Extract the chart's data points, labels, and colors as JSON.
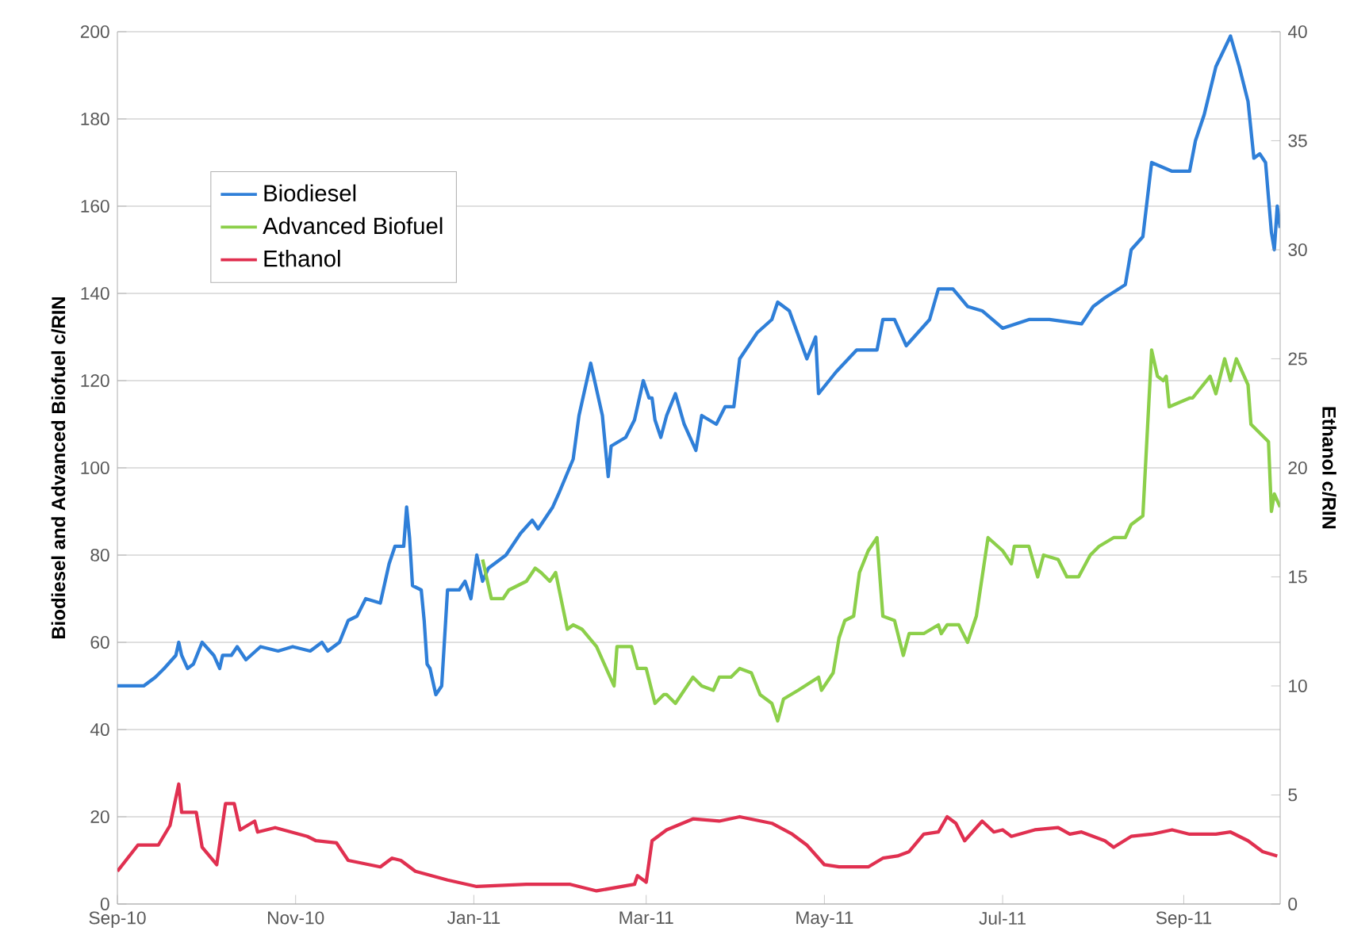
{
  "chart_data": {
    "type": "line",
    "ylabel": "Biodiesel and Advanced Biofuel c/RIN",
    "y2label": "Ethanol c/RIN",
    "xlim": [
      "2010-09-01",
      "2011-10-04"
    ],
    "xticks": [
      {
        "value": "2010-09-01",
        "label": "Sep-10"
      },
      {
        "value": "2010-11-01",
        "label": "Nov-10"
      },
      {
        "value": "2011-01-01",
        "label": "Jan-11"
      },
      {
        "value": "2011-03-01",
        "label": "Mar-11"
      },
      {
        "value": "2011-05-01",
        "label": "May-11"
      },
      {
        "value": "2011-07-01",
        "label": "Jul-11"
      },
      {
        "value": "2011-09-01",
        "label": "Sep-11"
      }
    ],
    "ylim": [
      0,
      200
    ],
    "yticks": [
      0,
      20,
      40,
      60,
      80,
      100,
      120,
      140,
      160,
      180,
      200
    ],
    "y2lim": [
      0,
      40
    ],
    "y2ticks": [
      0,
      5,
      10,
      15,
      20,
      25,
      30,
      35,
      40
    ],
    "grid": "y",
    "legend": "top left",
    "marker": "none",
    "line_style": "solid",
    "series": [
      {
        "name": "Biodiesel",
        "color": "#2f7fd8",
        "x": [
          "2010-09-01",
          "2010-09-10",
          "2010-09-14",
          "2010-09-17",
          "2010-09-21",
          "2010-09-22",
          "2010-09-23",
          "2010-09-25",
          "2010-09-27",
          "2010-09-30",
          "2010-10-04",
          "2010-10-06",
          "2010-10-07",
          "2010-10-10",
          "2010-10-12",
          "2010-10-15",
          "2010-10-20",
          "2010-10-26",
          "2010-10-31",
          "2010-11-06",
          "2010-11-10",
          "2010-11-12",
          "2010-11-16",
          "2010-11-19",
          "2010-11-22",
          "2010-11-25",
          "2010-11-30",
          "2010-12-03",
          "2010-12-05",
          "2010-12-08",
          "2010-12-09",
          "2010-12-10",
          "2010-12-11",
          "2010-12-14",
          "2010-12-15",
          "2010-12-16",
          "2010-12-17",
          "2010-12-19",
          "2010-12-21",
          "2010-12-23",
          "2010-12-27",
          "2010-12-29",
          "2010-12-31",
          "2011-01-02",
          "2011-01-04",
          "2011-01-06",
          "2011-01-10",
          "2011-01-12",
          "2011-01-17",
          "2011-01-21",
          "2011-01-23",
          "2011-01-28",
          "2011-01-30",
          "2011-02-04",
          "2011-02-06",
          "2011-02-10",
          "2011-02-14",
          "2011-02-16",
          "2011-02-17",
          "2011-02-22",
          "2011-02-25",
          "2011-02-28",
          "2011-03-02",
          "2011-03-03",
          "2011-03-04",
          "2011-03-06",
          "2011-03-08",
          "2011-03-11",
          "2011-03-14",
          "2011-03-18",
          "2011-03-20",
          "2011-03-25",
          "2011-03-28",
          "2011-03-31",
          "2011-04-02",
          "2011-04-08",
          "2011-04-13",
          "2011-04-15",
          "2011-04-19",
          "2011-04-25",
          "2011-04-28",
          "2011-04-29",
          "2011-05-05",
          "2011-05-12",
          "2011-05-19",
          "2011-05-21",
          "2011-05-25",
          "2011-05-29",
          "2011-06-06",
          "2011-06-09",
          "2011-06-14",
          "2011-06-19",
          "2011-06-24",
          "2011-07-01",
          "2011-07-10",
          "2011-07-17",
          "2011-07-28",
          "2011-08-01",
          "2011-08-05",
          "2011-08-12",
          "2011-08-14",
          "2011-08-18",
          "2011-08-21",
          "2011-08-28",
          "2011-09-03",
          "2011-09-05",
          "2011-09-08",
          "2011-09-12",
          "2011-09-17",
          "2011-09-20",
          "2011-09-23",
          "2011-09-25",
          "2011-09-27",
          "2011-09-29",
          "2011-10-01",
          "2011-10-02",
          "2011-10-03",
          "2011-10-04"
        ],
        "values": [
          50,
          50,
          52,
          54,
          57,
          60,
          57,
          54,
          55,
          60,
          57,
          54,
          57,
          57,
          59,
          56,
          59,
          58,
          59,
          58,
          60,
          58,
          60,
          65,
          66,
          70,
          69,
          78,
          82,
          82,
          91,
          84,
          73,
          72,
          65,
          55,
          54,
          48,
          50,
          72,
          72,
          74,
          70,
          80,
          74,
          77,
          79,
          80,
          85,
          88,
          86,
          91,
          94,
          102,
          112,
          124,
          112,
          98,
          105,
          107,
          111,
          120,
          116,
          116,
          111,
          107,
          112,
          117,
          110,
          104,
          112,
          110,
          114,
          114,
          125,
          131,
          134,
          138,
          136,
          125,
          130,
          117,
          122,
          127,
          127,
          134,
          134,
          128,
          134,
          141,
          141,
          137,
          136,
          132,
          134,
          134,
          133,
          137,
          139,
          142,
          150,
          153,
          170,
          168,
          168,
          175,
          181,
          192,
          199,
          192,
          184,
          171,
          172,
          170,
          154,
          150,
          160,
          155
        ]
      },
      {
        "name": "Advanced Biofuel",
        "color": "#8ccf4a",
        "x": [
          "2011-01-04",
          "2011-01-07",
          "2011-01-11",
          "2011-01-13",
          "2011-01-19",
          "2011-01-22",
          "2011-01-24",
          "2011-01-27",
          "2011-01-29",
          "2011-02-02",
          "2011-02-04",
          "2011-02-07",
          "2011-02-12",
          "2011-02-18",
          "2011-02-19",
          "2011-02-24",
          "2011-02-26",
          "2011-03-01",
          "2011-03-04",
          "2011-03-07",
          "2011-03-08",
          "2011-03-11",
          "2011-03-17",
          "2011-03-20",
          "2011-03-24",
          "2011-03-26",
          "2011-03-30",
          "2011-04-02",
          "2011-04-06",
          "2011-04-09",
          "2011-04-13",
          "2011-04-15",
          "2011-04-17",
          "2011-04-22",
          "2011-04-29",
          "2011-04-30",
          "2011-05-04",
          "2011-05-06",
          "2011-05-08",
          "2011-05-11",
          "2011-05-13",
          "2011-05-16",
          "2011-05-19",
          "2011-05-21",
          "2011-05-25",
          "2011-05-28",
          "2011-05-30",
          "2011-06-04",
          "2011-06-09",
          "2011-06-10",
          "2011-06-12",
          "2011-06-16",
          "2011-06-19",
          "2011-06-22",
          "2011-06-26",
          "2011-07-01",
          "2011-07-04",
          "2011-07-05",
          "2011-07-10",
          "2011-07-13",
          "2011-07-15",
          "2011-07-20",
          "2011-07-23",
          "2011-07-27",
          "2011-07-31",
          "2011-08-03",
          "2011-08-08",
          "2011-08-12",
          "2011-08-14",
          "2011-08-18",
          "2011-08-21",
          "2011-08-23",
          "2011-08-25",
          "2011-08-26",
          "2011-08-27",
          "2011-09-03",
          "2011-09-04",
          "2011-09-10",
          "2011-09-12",
          "2011-09-15",
          "2011-09-17",
          "2011-09-19",
          "2011-09-23",
          "2011-09-24",
          "2011-09-30",
          "2011-10-01",
          "2011-10-02",
          "2011-10-04"
        ],
        "values": [
          79,
          70,
          70,
          72,
          74,
          77,
          76,
          74,
          76,
          63,
          64,
          63,
          59,
          50,
          59,
          59,
          54,
          54,
          46,
          48,
          48,
          46,
          52,
          50,
          49,
          52,
          52,
          54,
          53,
          48,
          46,
          42,
          47,
          49,
          52,
          49,
          53,
          61,
          65,
          66,
          76,
          81,
          84,
          66,
          65,
          57,
          62,
          62,
          64,
          62,
          64,
          64,
          60,
          66,
          84,
          81,
          78,
          82,
          82,
          75,
          80,
          79,
          75,
          75,
          80,
          82,
          84,
          84,
          87,
          89,
          127,
          121,
          120,
          121,
          114,
          116,
          116,
          121,
          117,
          125,
          120,
          125,
          119,
          110,
          106,
          90,
          94,
          91
        ]
      },
      {
        "name": "Ethanol",
        "color": "#e03050",
        "axis": "y2",
        "x": [
          "2010-09-01",
          "2010-09-08",
          "2010-09-15",
          "2010-09-19",
          "2010-09-22",
          "2010-09-23",
          "2010-09-28",
          "2010-09-30",
          "2010-10-05",
          "2010-10-08",
          "2010-10-11",
          "2010-10-13",
          "2010-10-18",
          "2010-10-19",
          "2010-10-25",
          "2010-11-05",
          "2010-11-08",
          "2010-11-15",
          "2010-11-19",
          "2010-11-30",
          "2010-12-04",
          "2010-12-07",
          "2010-12-12",
          "2010-12-23",
          "2011-01-02",
          "2011-01-19",
          "2011-02-03",
          "2011-02-12",
          "2011-02-25",
          "2011-02-26",
          "2011-03-01",
          "2011-03-03",
          "2011-03-08",
          "2011-03-17",
          "2011-03-26",
          "2011-04-02",
          "2011-04-13",
          "2011-04-20",
          "2011-04-25",
          "2011-05-01",
          "2011-05-06",
          "2011-05-16",
          "2011-05-21",
          "2011-05-26",
          "2011-05-30",
          "2011-06-04",
          "2011-06-09",
          "2011-06-12",
          "2011-06-15",
          "2011-06-18",
          "2011-06-24",
          "2011-06-28",
          "2011-07-01",
          "2011-07-04",
          "2011-07-12",
          "2011-07-20",
          "2011-07-24",
          "2011-07-28",
          "2011-08-05",
          "2011-08-08",
          "2011-08-14",
          "2011-08-21",
          "2011-08-28",
          "2011-09-03",
          "2011-09-12",
          "2011-09-17",
          "2011-09-23",
          "2011-09-28",
          "2011-10-03"
        ],
        "values": [
          1.5,
          2.7,
          2.7,
          3.6,
          5.5,
          4.2,
          4.2,
          2.6,
          1.8,
          4.6,
          4.6,
          3.4,
          3.8,
          3.3,
          3.5,
          3.1,
          2.9,
          2.8,
          2.0,
          1.7,
          2.1,
          2.0,
          1.5,
          1.1,
          0.8,
          0.9,
          0.9,
          0.6,
          0.9,
          1.3,
          1.0,
          2.9,
          3.4,
          3.9,
          3.8,
          4.0,
          3.7,
          3.2,
          2.7,
          1.8,
          1.7,
          1.7,
          2.1,
          2.2,
          2.4,
          3.2,
          3.3,
          4.0,
          3.7,
          2.9,
          3.8,
          3.3,
          3.4,
          3.1,
          3.4,
          3.5,
          3.2,
          3.3,
          2.9,
          2.6,
          3.1,
          3.2,
          3.4,
          3.2,
          3.2,
          3.3,
          2.9,
          2.4,
          2.2
        ]
      }
    ]
  }
}
